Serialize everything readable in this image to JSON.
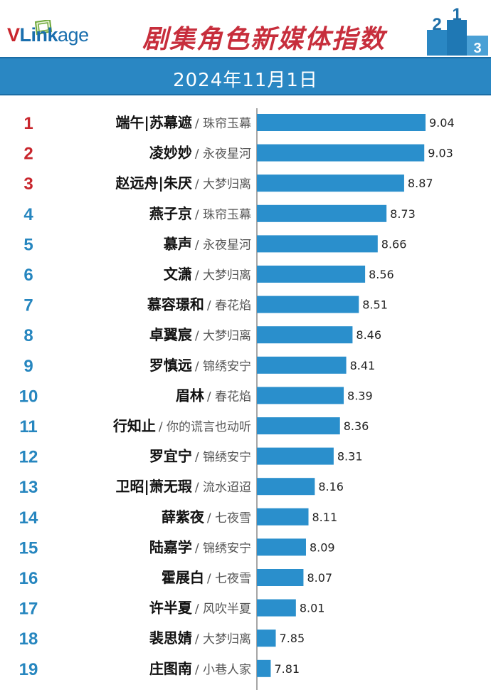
{
  "header": {
    "logo_v": "V",
    "logo_link": "Link",
    "logo_age": "age",
    "title": "剧集角色新媒体指数",
    "podium_digits": [
      "2",
      "1",
      "3"
    ]
  },
  "date": "2024年11月1日",
  "colors": {
    "bar": "#2a8fcc",
    "rank_top": "#c8252c",
    "rank_rest": "#2686bf",
    "header_band": "#2a87c3",
    "title": "#c72e3c"
  },
  "chart_data": {
    "type": "bar",
    "orientation": "horizontal",
    "xlim": [
      7.5,
      9.2
    ],
    "rows": [
      {
        "rank": "1",
        "name": "端午|苏幕遮",
        "show": "珠帘玉幕",
        "value": 9.04,
        "value_label": "9.04"
      },
      {
        "rank": "2",
        "name": "凌妙妙",
        "show": "永夜星河",
        "value": 9.03,
        "value_label": "9.03"
      },
      {
        "rank": "3",
        "name": "赵远舟|朱厌",
        "show": "大梦归离",
        "value": 8.87,
        "value_label": "8.87"
      },
      {
        "rank": "4",
        "name": "燕子京",
        "show": "珠帘玉幕",
        "value": 8.73,
        "value_label": "8.73"
      },
      {
        "rank": "5",
        "name": "慕声",
        "show": "永夜星河",
        "value": 8.66,
        "value_label": "8.66"
      },
      {
        "rank": "6",
        "name": "文潇",
        "show": "大梦归离",
        "value": 8.56,
        "value_label": "8.56"
      },
      {
        "rank": "7",
        "name": "慕容璟和",
        "show": "春花焰",
        "value": 8.51,
        "value_label": "8.51"
      },
      {
        "rank": "8",
        "name": "卓翼宸",
        "show": "大梦归离",
        "value": 8.46,
        "value_label": "8.46"
      },
      {
        "rank": "9",
        "name": "罗慎远",
        "show": "锦绣安宁",
        "value": 8.41,
        "value_label": "8.41"
      },
      {
        "rank": "10",
        "name": "眉林",
        "show": "春花焰",
        "value": 8.39,
        "value_label": "8.39"
      },
      {
        "rank": "11",
        "name": "行知止",
        "show": "你的谎言也动听",
        "value": 8.36,
        "value_label": "8.36"
      },
      {
        "rank": "12",
        "name": "罗宜宁",
        "show": "锦绣安宁",
        "value": 8.31,
        "value_label": "8.31"
      },
      {
        "rank": "13",
        "name": "卫昭|萧无瑕",
        "show": "流水迢迢",
        "value": 8.16,
        "value_label": "8.16"
      },
      {
        "rank": "14",
        "name": "薛紫夜",
        "show": "七夜雪",
        "value": 8.11,
        "value_label": "8.11"
      },
      {
        "rank": "15",
        "name": "陆嘉学",
        "show": "锦绣安宁",
        "value": 8.09,
        "value_label": "8.09"
      },
      {
        "rank": "16",
        "name": "霍展白",
        "show": "七夜雪",
        "value": 8.07,
        "value_label": "8.07"
      },
      {
        "rank": "17",
        "name": "许半夏",
        "show": "风吹半夏",
        "value": 8.01,
        "value_label": "8.01"
      },
      {
        "rank": "18",
        "name": "裴思婧",
        "show": "大梦归离",
        "value": 7.85,
        "value_label": "7.85"
      },
      {
        "rank": "19",
        "name": "庄图南",
        "show": "小巷人家",
        "value": 7.81,
        "value_label": "7.81"
      }
    ]
  }
}
